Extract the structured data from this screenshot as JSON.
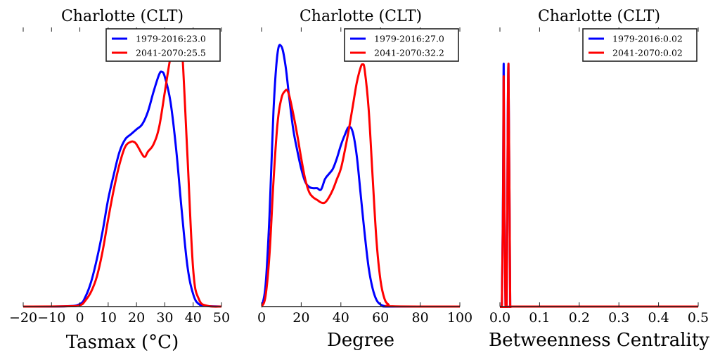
{
  "chart_data": [
    {
      "type": "line",
      "title": "Charlotte (CLT)",
      "xlabel": "Tasmax ($^\\circ$C)",
      "xlabel_display": "Tasmax (°C)",
      "ylabel": "",
      "xlim": [
        -20,
        50
      ],
      "ylim": [
        0,
        1
      ],
      "xticks": [
        -20,
        -10,
        0,
        10,
        20,
        30,
        40,
        50
      ],
      "xtick_labels": [
        "−20",
        "−10",
        "0",
        "10",
        "20",
        "30",
        "40",
        "50"
      ],
      "grid": false,
      "legend_position": "top-right",
      "series": [
        {
          "name": "1979-2016:23.0",
          "color": "#0000ff",
          "x": [
            -20,
            -5,
            0,
            2,
            4,
            6,
            8,
            10,
            12,
            14,
            16,
            18,
            20,
            22,
            24,
            26,
            28,
            29,
            30,
            32,
            34,
            36,
            38,
            40,
            42,
            45,
            50
          ],
          "y": [
            0,
            0.001,
            0.01,
            0.04,
            0.1,
            0.19,
            0.3,
            0.43,
            0.53,
            0.62,
            0.67,
            0.69,
            0.71,
            0.73,
            0.78,
            0.86,
            0.93,
            0.94,
            0.92,
            0.82,
            0.63,
            0.38,
            0.16,
            0.05,
            0.01,
            0.002,
            0
          ]
        },
        {
          "name": "2041-2070:25.5",
          "color": "#ff0000",
          "x": [
            -20,
            -5,
            0,
            2,
            4,
            6,
            8,
            10,
            12,
            14,
            16,
            18,
            19,
            20,
            22,
            23,
            24,
            26,
            28,
            30,
            32,
            34,
            35,
            36,
            38,
            40,
            42,
            45,
            50
          ],
          "y": [
            0,
            0.001,
            0.005,
            0.025,
            0.06,
            0.12,
            0.22,
            0.35,
            0.47,
            0.57,
            0.64,
            0.66,
            0.66,
            0.65,
            0.61,
            0.6,
            0.62,
            0.65,
            0.72,
            0.86,
            1.0,
            1.1,
            1.1,
            1.05,
            0.6,
            0.15,
            0.03,
            0.003,
            0
          ]
        }
      ]
    },
    {
      "type": "line",
      "title": "Charlotte (CLT)",
      "xlabel": "Degree",
      "ylabel": "",
      "xlim": [
        0,
        100
      ],
      "ylim": [
        0,
        1
      ],
      "xticks": [
        0,
        20,
        40,
        60,
        80,
        100
      ],
      "xtick_labels": [
        "0",
        "20",
        "40",
        "60",
        "80",
        "100"
      ],
      "grid": false,
      "legend_position": "top-right",
      "series": [
        {
          "name": "1979-2016:27.0",
          "color": "#0000ff",
          "x": [
            0,
            2,
            4,
            6,
            8,
            10,
            12,
            14,
            16,
            18,
            20,
            22,
            24,
            26,
            28,
            30,
            32,
            34,
            36,
            38,
            40,
            42,
            44,
            46,
            48,
            50,
            52,
            54,
            56,
            58,
            60,
            62,
            65,
            100
          ],
          "y": [
            0,
            0.08,
            0.35,
            0.75,
            0.97,
            1.0,
            0.93,
            0.8,
            0.68,
            0.6,
            0.53,
            0.48,
            0.46,
            0.455,
            0.455,
            0.45,
            0.49,
            0.51,
            0.53,
            0.57,
            0.62,
            0.66,
            0.69,
            0.67,
            0.58,
            0.43,
            0.28,
            0.15,
            0.07,
            0.025,
            0.008,
            0.002,
            0,
            0
          ]
        },
        {
          "name": "2041-2070:32.2",
          "color": "#ff0000",
          "x": [
            0,
            2,
            4,
            6,
            8,
            10,
            12,
            13,
            14,
            16,
            18,
            20,
            22,
            24,
            26,
            28,
            30,
            32,
            34,
            36,
            38,
            40,
            42,
            44,
            46,
            48,
            50,
            51,
            52,
            54,
            56,
            58,
            60,
            62,
            64,
            66,
            100
          ],
          "y": [
            0,
            0.04,
            0.2,
            0.48,
            0.7,
            0.8,
            0.83,
            0.83,
            0.81,
            0.74,
            0.66,
            0.57,
            0.49,
            0.44,
            0.42,
            0.41,
            0.4,
            0.4,
            0.42,
            0.45,
            0.49,
            0.53,
            0.6,
            0.68,
            0.77,
            0.86,
            0.92,
            0.93,
            0.91,
            0.76,
            0.5,
            0.25,
            0.1,
            0.03,
            0.008,
            0.001,
            0
          ]
        }
      ]
    },
    {
      "type": "line",
      "title": "Charlotte (CLT)",
      "xlabel": "Betweenness Centrality",
      "ylabel": "",
      "xlim": [
        0.0,
        0.5
      ],
      "ylim": [
        0,
        1
      ],
      "xticks": [
        0.0,
        0.1,
        0.2,
        0.3,
        0.4,
        0.5
      ],
      "xtick_labels": [
        "0.0",
        "0.1",
        "0.2",
        "0.3",
        "0.4",
        "0.5"
      ],
      "grid": false,
      "legend_position": "top-right",
      "series": [
        {
          "name": "1979-2016:0.02",
          "color": "#0000ff",
          "x": [
            0.0,
            0.005,
            0.008,
            0.0095,
            0.011,
            0.014,
            0.017,
            0.0215,
            0.026,
            0.031,
            0.5
          ],
          "y": [
            0,
            0.01,
            0.5,
            0.97,
            0.5,
            0.01,
            0.0,
            0.97,
            0.0,
            0.0,
            0
          ]
        },
        {
          "name": "2041-2070:0.02",
          "color": "#ff0000",
          "x": [
            0.0,
            0.005,
            0.008,
            0.0095,
            0.011,
            0.014,
            0.017,
            0.0215,
            0.026,
            0.031,
            0.5
          ],
          "y": [
            0,
            0.01,
            0.46,
            0.92,
            0.46,
            0.01,
            0.0,
            0.97,
            0.0,
            0.0,
            0
          ]
        }
      ]
    }
  ]
}
